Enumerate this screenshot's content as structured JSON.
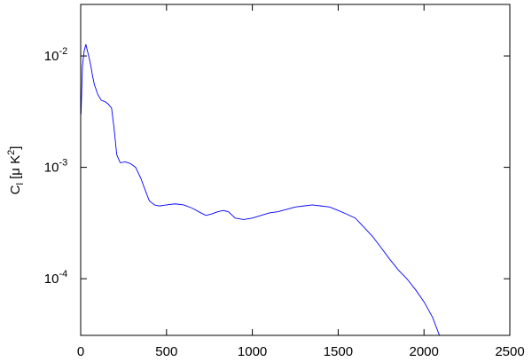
{
  "chart_data": {
    "type": "line",
    "ylabel": [
      "C",
      "l",
      " [μ K",
      "2",
      "]"
    ],
    "x": [
      2,
      10,
      20,
      30,
      40,
      50,
      60,
      70,
      80,
      90,
      100,
      120,
      140,
      160,
      180,
      195,
      210,
      230,
      260,
      290,
      320,
      350,
      380,
      400,
      430,
      460,
      500,
      550,
      600,
      650,
      700,
      730,
      760,
      800,
      830,
      860,
      900,
      950,
      1000,
      1050,
      1100,
      1150,
      1200,
      1250,
      1300,
      1350,
      1400,
      1450,
      1500,
      1550,
      1600,
      1650,
      1700,
      1750,
      1800,
      1850,
      1900,
      1950,
      2000,
      2050,
      2090
    ],
    "series": [
      {
        "color": "#0000ff",
        "values": [
          0.003,
          0.008,
          0.011,
          0.0127,
          0.011,
          0.0095,
          0.008,
          0.0065,
          0.0055,
          0.005,
          0.0045,
          0.004,
          0.0039,
          0.0037,
          0.0034,
          0.0022,
          0.0013,
          0.0011,
          0.00112,
          0.00108,
          0.001,
          0.0008,
          0.0006,
          0.0005,
          0.00046,
          0.00045,
          0.00046,
          0.00047,
          0.00046,
          0.00043,
          0.00039,
          0.00037,
          0.00038,
          0.0004,
          0.00041,
          0.0004,
          0.00035,
          0.00034,
          0.00035,
          0.00037,
          0.00039,
          0.0004,
          0.00042,
          0.00044,
          0.00045,
          0.00046,
          0.00045,
          0.00044,
          0.00041,
          0.00038,
          0.00035,
          0.00029,
          0.00024,
          0.00019,
          0.00015,
          0.00012,
          0.0001,
          8e-05,
          6.2e-05,
          4.5e-05,
          3.1e-05
        ]
      }
    ],
    "xlim": [
      0,
      2500
    ],
    "xticks": [
      0,
      500,
      1000,
      1500,
      2000,
      2500
    ],
    "ylim": [
      3.1e-05,
      0.029
    ],
    "log_y": true,
    "yticks": [
      {
        "value": 0.01,
        "label": "10",
        "exponent": "-2"
      },
      {
        "value": 0.001,
        "label": "10",
        "exponent": "-3"
      },
      {
        "value": 0.0001,
        "label": "10",
        "exponent": "-4"
      }
    ]
  }
}
